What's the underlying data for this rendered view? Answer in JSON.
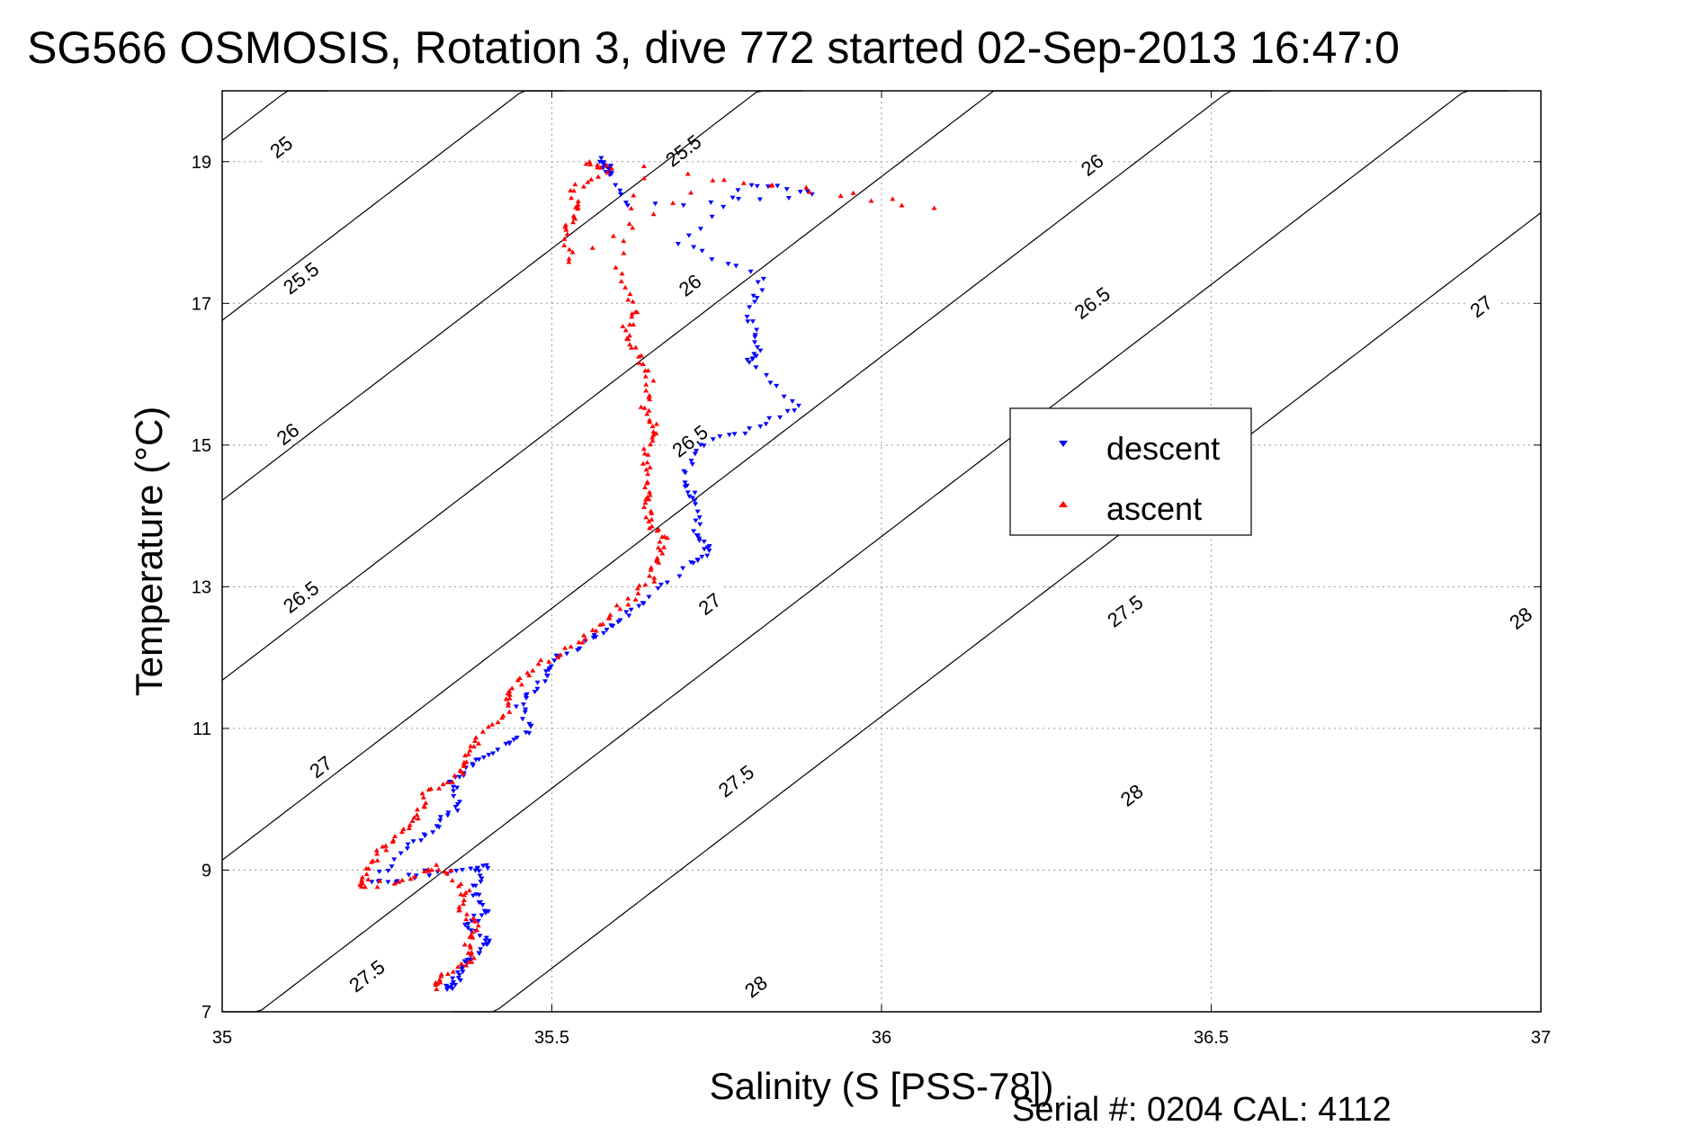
{
  "chart_data": {
    "type": "scatter",
    "title": "SG566 OSMOSIS, Rotation 3, dive 772 started 02-Sep-2013 16:47:0",
    "xlabel": "Salinity (S [PSS-78])",
    "ylabel": "Temperature (°C)",
    "footer": "Serial #: 0204  CAL: 4112",
    "xlim": [
      35,
      37
    ],
    "ylim": [
      7,
      20
    ],
    "xticks": [
      35,
      35.5,
      36,
      36.5,
      37
    ],
    "xtick_labels": [
      "35",
      "35.5",
      "36",
      "36.5",
      "37"
    ],
    "yticks": [
      7,
      9,
      11,
      13,
      15,
      17,
      19
    ],
    "ytick_labels": [
      "7",
      "9",
      "11",
      "13",
      "15",
      "17",
      "19"
    ],
    "grid": true,
    "legend_position": "right",
    "density_contours": [
      {
        "label": "25",
        "sigma": 25,
        "labels_at": [
          [
            35.09,
            19.2
          ]
        ]
      },
      {
        "label": "25.5",
        "sigma": 25.5,
        "labels_at": [
          [
            35.12,
            17.35
          ],
          [
            35.7,
            19.15
          ]
        ]
      },
      {
        "label": "26",
        "sigma": 26,
        "labels_at": [
          [
            35.1,
            15.15
          ],
          [
            35.71,
            17.25
          ],
          [
            36.32,
            18.95
          ]
        ]
      },
      {
        "label": "26.5",
        "sigma": 26.5,
        "labels_at": [
          [
            35.12,
            12.85
          ],
          [
            35.71,
            15.05
          ],
          [
            36.32,
            17.0
          ]
        ]
      },
      {
        "label": "27",
        "sigma": 27,
        "labels_at": [
          [
            35.15,
            10.45
          ],
          [
            35.74,
            12.75
          ],
          [
            36.91,
            16.95
          ]
        ]
      },
      {
        "label": "27.5",
        "sigma": 27.5,
        "labels_at": [
          [
            35.22,
            7.5
          ],
          [
            35.78,
            10.25
          ],
          [
            36.37,
            12.65
          ]
        ]
      },
      {
        "label": "28",
        "sigma": 28,
        "labels_at": [
          [
            35.81,
            7.35
          ],
          [
            36.38,
            10.05
          ],
          [
            36.97,
            12.55
          ]
        ]
      }
    ],
    "series": [
      {
        "name": "descent",
        "color": "#0000ff",
        "marker": "triangle-down",
        "anchors": [
          [
            35.575,
            19.05
          ],
          [
            35.59,
            18.85
          ],
          [
            35.58,
            18.95
          ],
          [
            35.62,
            18.35
          ],
          [
            35.9,
            18.55
          ],
          [
            35.8,
            18.7
          ],
          [
            35.695,
            17.85
          ],
          [
            35.82,
            17.35
          ],
          [
            35.8,
            16.85
          ],
          [
            35.815,
            16.4
          ],
          [
            35.8,
            16.15
          ],
          [
            35.88,
            15.55
          ],
          [
            35.8,
            15.2
          ],
          [
            35.72,
            15.0
          ],
          [
            35.7,
            14.5
          ],
          [
            35.72,
            14.2
          ],
          [
            35.72,
            13.75
          ],
          [
            35.74,
            13.55
          ],
          [
            35.71,
            13.3
          ],
          [
            35.64,
            12.8
          ],
          [
            35.6,
            12.5
          ],
          [
            35.56,
            12.25
          ],
          [
            35.5,
            11.95
          ],
          [
            35.49,
            11.7
          ],
          [
            35.45,
            11.35
          ],
          [
            35.47,
            11.0
          ],
          [
            35.43,
            10.75
          ],
          [
            35.38,
            10.5
          ],
          [
            35.35,
            10.25
          ],
          [
            35.36,
            9.9
          ],
          [
            35.32,
            9.6
          ],
          [
            35.28,
            9.3
          ],
          [
            35.23,
            8.8
          ],
          [
            35.3,
            8.95
          ],
          [
            35.37,
            9.0
          ],
          [
            35.4,
            9.05
          ],
          [
            35.38,
            8.7
          ],
          [
            35.4,
            8.4
          ],
          [
            35.37,
            8.25
          ],
          [
            35.41,
            8.0
          ],
          [
            35.38,
            7.8
          ],
          [
            35.36,
            7.55
          ],
          [
            35.35,
            7.4
          ],
          [
            35.34,
            7.3
          ]
        ]
      },
      {
        "name": "ascent",
        "color": "#ff0000",
        "marker": "triangle-up",
        "anchors": [
          [
            35.55,
            19.0
          ],
          [
            35.59,
            18.9
          ],
          [
            35.53,
            18.6
          ],
          [
            35.54,
            18.3
          ],
          [
            35.52,
            18.0
          ],
          [
            35.53,
            17.6
          ],
          [
            35.74,
            18.75
          ],
          [
            36.08,
            18.35
          ],
          [
            35.64,
            18.95
          ],
          [
            35.6,
            17.5
          ],
          [
            35.63,
            16.9
          ],
          [
            35.61,
            16.6
          ],
          [
            35.63,
            16.3
          ],
          [
            35.65,
            15.9
          ],
          [
            35.64,
            15.5
          ],
          [
            35.66,
            15.2
          ],
          [
            35.64,
            14.9
          ],
          [
            35.65,
            14.5
          ],
          [
            35.64,
            14.2
          ],
          [
            35.65,
            13.9
          ],
          [
            35.67,
            13.65
          ],
          [
            35.66,
            13.4
          ],
          [
            35.65,
            13.1
          ],
          [
            35.61,
            12.75
          ],
          [
            35.57,
            12.45
          ],
          [
            35.53,
            12.15
          ],
          [
            35.47,
            11.85
          ],
          [
            35.44,
            11.55
          ],
          [
            35.43,
            11.25
          ],
          [
            35.39,
            10.9
          ],
          [
            35.37,
            10.6
          ],
          [
            35.36,
            10.35
          ],
          [
            35.31,
            10.1
          ],
          [
            35.3,
            9.8
          ],
          [
            35.27,
            9.5
          ],
          [
            35.24,
            9.25
          ],
          [
            35.22,
            8.95
          ],
          [
            35.21,
            8.75
          ],
          [
            35.29,
            8.9
          ],
          [
            35.33,
            9.05
          ],
          [
            35.37,
            8.75
          ],
          [
            35.36,
            8.45
          ],
          [
            35.39,
            8.2
          ],
          [
            35.37,
            7.95
          ],
          [
            35.38,
            7.7
          ],
          [
            35.33,
            7.5
          ],
          [
            35.32,
            7.3
          ]
        ]
      }
    ]
  }
}
